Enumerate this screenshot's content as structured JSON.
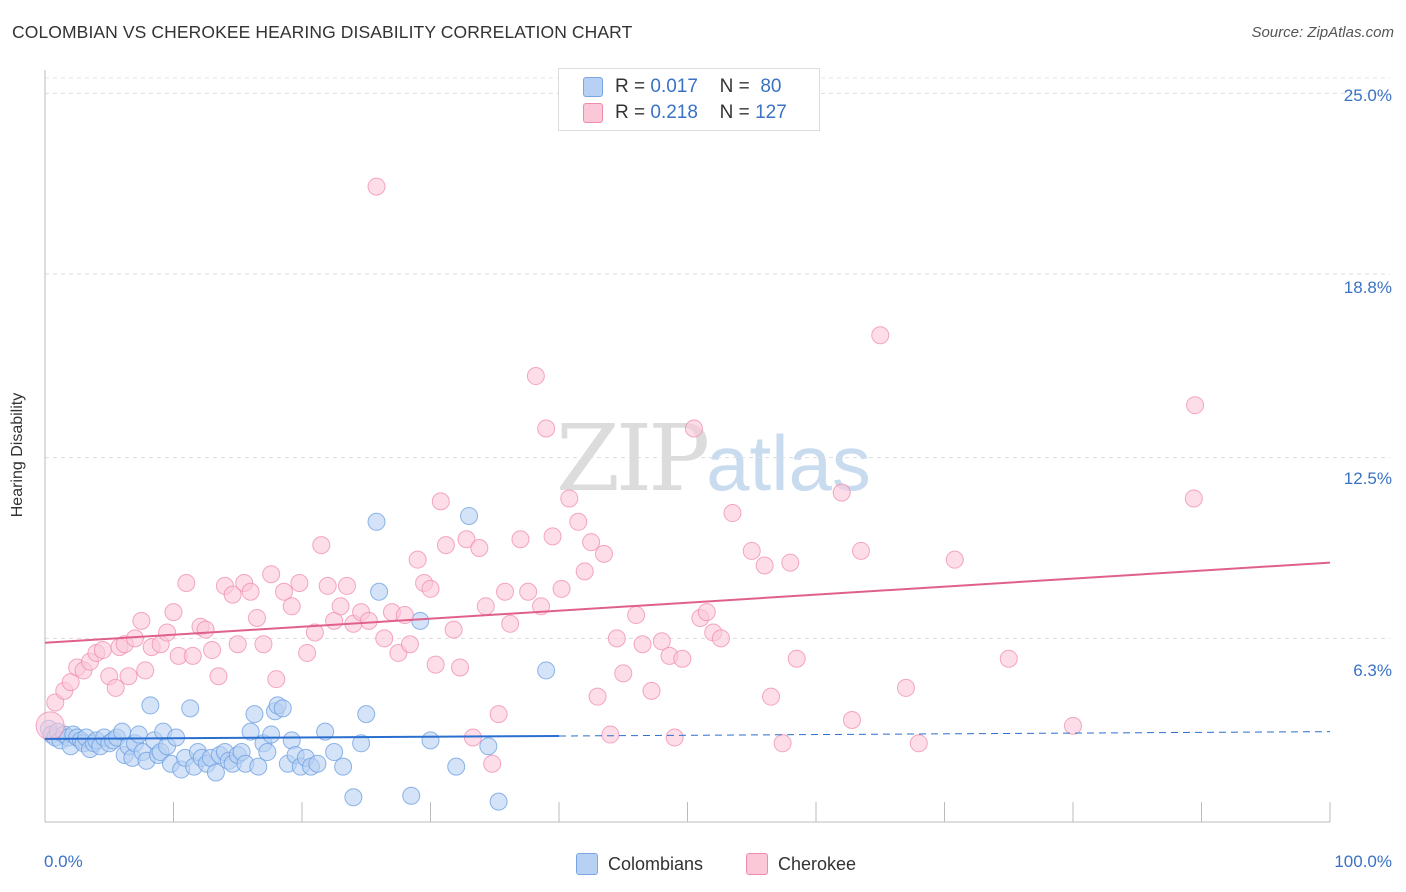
{
  "header": {
    "title": "COLOMBIAN VS CHEROKEE HEARING DISABILITY CORRELATION CHART",
    "source": "Source: ZipAtlas.com"
  },
  "watermark": {
    "part1": "ZIP",
    "part2": "atlas"
  },
  "legend": {
    "rows": [
      {
        "r_label": "R =",
        "r_value": "0.017",
        "n_label": "N =",
        "n_value": "80",
        "color": "#b8d0f4",
        "border": "#7aa6e6"
      },
      {
        "r_label": "R =",
        "r_value": "0.218",
        "n_label": "N =",
        "n_value": "127",
        "color": "#fbc8d8",
        "border": "#f08bb0"
      }
    ]
  },
  "bottom_legend": {
    "items": [
      {
        "label": "Colombians",
        "color": "#b8d0f4",
        "border": "#7aa6e6"
      },
      {
        "label": "Cherokee",
        "color": "#fbc8d8",
        "border": "#f08bb0"
      }
    ]
  },
  "chart_data": {
    "type": "scatter",
    "title": "COLOMBIAN VS CHEROKEE HEARING DISABILITY CORRELATION CHART",
    "xlabel": "",
    "ylabel": "Hearing Disability",
    "xlim": [
      0,
      100
    ],
    "ylim": [
      0,
      25.8
    ],
    "x_tick_labels": [
      "0.0%",
      "100.0%"
    ],
    "y_ticks": [
      6.3,
      12.5,
      18.8,
      25.0
    ],
    "y_tick_labels": [
      "6.3%",
      "12.5%",
      "18.8%",
      "25.0%"
    ],
    "grid": true,
    "legend_position": "top-center",
    "series": [
      {
        "name": "Colombians",
        "color": "#6a9ee0",
        "fill": "#b8d0f4",
        "trend": {
          "x0": 0,
          "y0": 2.85,
          "x1": 40,
          "y1": 2.95,
          "x_end": 100,
          "y_end": 3.1
        },
        "points": [
          [
            0.3,
            3.2
          ],
          [
            0.5,
            3.0
          ],
          [
            0.8,
            2.9
          ],
          [
            1.0,
            3.1
          ],
          [
            1.2,
            2.8
          ],
          [
            1.5,
            3.0
          ],
          [
            1.8,
            2.9
          ],
          [
            2.0,
            2.6
          ],
          [
            2.2,
            3.0
          ],
          [
            2.5,
            2.9
          ],
          [
            2.8,
            2.8
          ],
          [
            3.0,
            2.7
          ],
          [
            3.2,
            2.9
          ],
          [
            3.5,
            2.5
          ],
          [
            3.8,
            2.7
          ],
          [
            4.0,
            2.8
          ],
          [
            4.3,
            2.6
          ],
          [
            4.6,
            2.9
          ],
          [
            5.0,
            2.7
          ],
          [
            5.3,
            2.8
          ],
          [
            5.6,
            2.9
          ],
          [
            6.0,
            3.1
          ],
          [
            6.2,
            2.3
          ],
          [
            6.5,
            2.6
          ],
          [
            6.8,
            2.2
          ],
          [
            7.0,
            2.7
          ],
          [
            7.3,
            3.0
          ],
          [
            7.6,
            2.4
          ],
          [
            7.9,
            2.1
          ],
          [
            8.2,
            4.0
          ],
          [
            8.5,
            2.8
          ],
          [
            8.8,
            2.3
          ],
          [
            9.0,
            2.4
          ],
          [
            9.2,
            3.1
          ],
          [
            9.5,
            2.6
          ],
          [
            9.8,
            2.0
          ],
          [
            10.2,
            2.9
          ],
          [
            10.6,
            1.8
          ],
          [
            10.9,
            2.2
          ],
          [
            11.3,
            3.9
          ],
          [
            11.6,
            1.9
          ],
          [
            11.9,
            2.4
          ],
          [
            12.2,
            2.2
          ],
          [
            12.6,
            2.0
          ],
          [
            12.9,
            2.2
          ],
          [
            13.3,
            1.7
          ],
          [
            13.6,
            2.3
          ],
          [
            14.0,
            2.4
          ],
          [
            14.3,
            2.1
          ],
          [
            14.6,
            2.0
          ],
          [
            15.0,
            2.3
          ],
          [
            15.3,
            2.4
          ],
          [
            15.6,
            2.0
          ],
          [
            16.0,
            3.1
          ],
          [
            16.3,
            3.7
          ],
          [
            16.6,
            1.9
          ],
          [
            17.0,
            2.7
          ],
          [
            17.3,
            2.4
          ],
          [
            17.6,
            3.0
          ],
          [
            17.9,
            3.8
          ],
          [
            18.1,
            4.0
          ],
          [
            18.5,
            3.9
          ],
          [
            18.9,
            2.0
          ],
          [
            19.2,
            2.8
          ],
          [
            19.5,
            2.3
          ],
          [
            19.9,
            1.9
          ],
          [
            20.3,
            2.2
          ],
          [
            20.7,
            1.9
          ],
          [
            21.2,
            2.0
          ],
          [
            21.8,
            3.1
          ],
          [
            22.5,
            2.4
          ],
          [
            23.2,
            1.9
          ],
          [
            24.0,
            0.85
          ],
          [
            24.6,
            2.7
          ],
          [
            25.0,
            3.7
          ],
          [
            25.8,
            10.3
          ],
          [
            26.0,
            7.9
          ],
          [
            28.5,
            0.9
          ],
          [
            29.2,
            6.9
          ],
          [
            30.0,
            2.8
          ],
          [
            32.0,
            1.9
          ],
          [
            33.0,
            10.5
          ],
          [
            34.5,
            2.6
          ],
          [
            35.3,
            0.7
          ],
          [
            39.0,
            5.2
          ]
        ]
      },
      {
        "name": "Cherokee",
        "color": "#f08bb0",
        "fill": "#fbc8d8",
        "trend": {
          "x0": 0,
          "y0": 6.15,
          "x1": 100,
          "y1": 8.9
        },
        "points": [
          [
            0.4,
            3.3
          ],
          [
            0.8,
            4.1
          ],
          [
            1.5,
            4.5
          ],
          [
            2.0,
            4.8
          ],
          [
            2.5,
            5.3
          ],
          [
            3.0,
            5.2
          ],
          [
            3.5,
            5.5
          ],
          [
            4.0,
            5.8
          ],
          [
            4.5,
            5.9
          ],
          [
            5.0,
            5.0
          ],
          [
            5.5,
            4.6
          ],
          [
            5.8,
            6.0
          ],
          [
            6.2,
            6.1
          ],
          [
            6.5,
            5.0
          ],
          [
            7.0,
            6.3
          ],
          [
            7.5,
            6.9
          ],
          [
            7.8,
            5.2
          ],
          [
            8.3,
            6.0
          ],
          [
            9.0,
            6.1
          ],
          [
            9.5,
            6.5
          ],
          [
            10.0,
            7.2
          ],
          [
            10.4,
            5.7
          ],
          [
            11.0,
            8.2
          ],
          [
            11.5,
            5.7
          ],
          [
            12.1,
            6.7
          ],
          [
            12.5,
            6.6
          ],
          [
            13.0,
            5.9
          ],
          [
            13.5,
            5.0
          ],
          [
            14.0,
            8.1
          ],
          [
            14.6,
            7.8
          ],
          [
            15.0,
            6.1
          ],
          [
            15.5,
            8.2
          ],
          [
            16.0,
            7.9
          ],
          [
            16.5,
            7.0
          ],
          [
            17.0,
            6.1
          ],
          [
            17.6,
            8.5
          ],
          [
            18.0,
            4.9
          ],
          [
            18.6,
            7.9
          ],
          [
            19.2,
            7.4
          ],
          [
            19.8,
            8.2
          ],
          [
            20.4,
            5.8
          ],
          [
            21.0,
            6.5
          ],
          [
            21.5,
            9.5
          ],
          [
            22.0,
            8.1
          ],
          [
            22.5,
            6.9
          ],
          [
            23.0,
            7.4
          ],
          [
            23.5,
            8.1
          ],
          [
            24.0,
            6.8
          ],
          [
            24.6,
            7.2
          ],
          [
            25.2,
            6.9
          ],
          [
            25.8,
            21.8
          ],
          [
            26.4,
            6.3
          ],
          [
            27.0,
            7.2
          ],
          [
            27.5,
            5.8
          ],
          [
            28.0,
            7.1
          ],
          [
            28.4,
            6.1
          ],
          [
            29.0,
            9.0
          ],
          [
            29.5,
            8.2
          ],
          [
            30.0,
            8.0
          ],
          [
            30.4,
            5.4
          ],
          [
            30.8,
            11.0
          ],
          [
            31.2,
            9.5
          ],
          [
            31.8,
            6.6
          ],
          [
            32.3,
            5.3
          ],
          [
            32.8,
            9.7
          ],
          [
            33.3,
            2.9
          ],
          [
            33.8,
            9.4
          ],
          [
            34.3,
            7.4
          ],
          [
            34.8,
            2.0
          ],
          [
            35.3,
            3.7
          ],
          [
            35.8,
            7.9
          ],
          [
            36.2,
            6.8
          ],
          [
            37.0,
            9.7
          ],
          [
            37.6,
            7.9
          ],
          [
            38.2,
            15.3
          ],
          [
            38.6,
            7.4
          ],
          [
            39.0,
            13.5
          ],
          [
            39.5,
            9.8
          ],
          [
            40.2,
            8.0
          ],
          [
            40.8,
            11.1
          ],
          [
            41.5,
            10.3
          ],
          [
            42.0,
            8.6
          ],
          [
            42.5,
            9.6
          ],
          [
            43.0,
            4.3
          ],
          [
            43.5,
            9.2
          ],
          [
            44.0,
            3.0
          ],
          [
            44.5,
            6.3
          ],
          [
            45.0,
            5.1
          ],
          [
            46.0,
            7.1
          ],
          [
            46.5,
            6.1
          ],
          [
            47.2,
            4.5
          ],
          [
            48.0,
            6.2
          ],
          [
            48.6,
            5.7
          ],
          [
            49.0,
            2.9
          ],
          [
            49.6,
            5.6
          ],
          [
            50.5,
            13.5
          ],
          [
            51.0,
            7.0
          ],
          [
            51.5,
            7.2
          ],
          [
            52.0,
            6.5
          ],
          [
            52.6,
            6.3
          ],
          [
            53.5,
            10.6
          ],
          [
            55.0,
            9.3
          ],
          [
            56.0,
            8.8
          ],
          [
            56.5,
            4.3
          ],
          [
            57.4,
            2.7
          ],
          [
            58.0,
            8.9
          ],
          [
            58.5,
            5.6
          ],
          [
            62.0,
            11.3
          ],
          [
            62.8,
            3.5
          ],
          [
            63.5,
            9.3
          ],
          [
            65.0,
            16.7
          ],
          [
            67.0,
            4.6
          ],
          [
            68.0,
            2.7
          ],
          [
            70.8,
            9.0
          ],
          [
            75.0,
            5.6
          ],
          [
            80.0,
            3.3
          ],
          [
            89.4,
            11.1
          ],
          [
            89.5,
            14.3
          ]
        ]
      }
    ]
  }
}
